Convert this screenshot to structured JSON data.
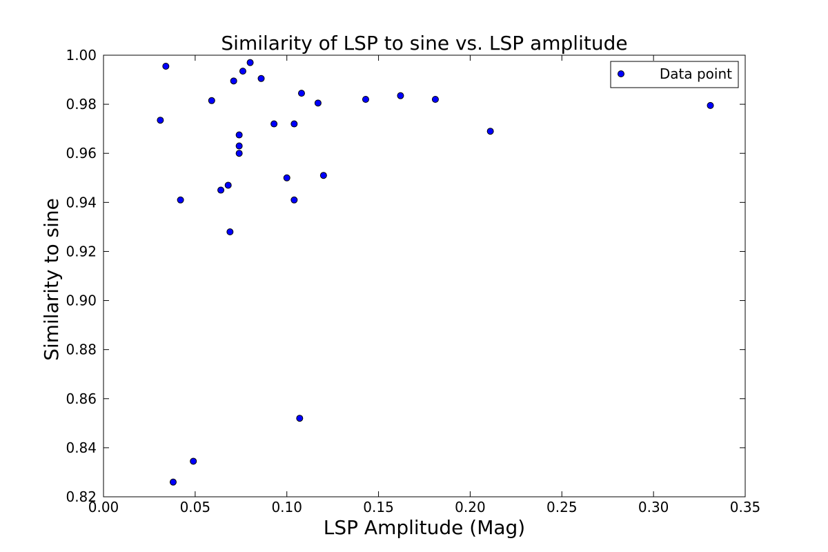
{
  "chart_data": {
    "type": "scatter",
    "title": "Similarity of LSP to sine vs. LSP amplitude",
    "xlabel": "LSP Amplitude (Mag)",
    "ylabel": "Similarity to sine",
    "xlim": [
      0.0,
      0.35
    ],
    "ylim": [
      0.82,
      1.0
    ],
    "x_ticks": [
      "0.00",
      "0.05",
      "0.10",
      "0.15",
      "0.20",
      "0.25",
      "0.30",
      "0.35"
    ],
    "y_ticks": [
      "0.82",
      "0.84",
      "0.86",
      "0.88",
      "0.90",
      "0.92",
      "0.94",
      "0.96",
      "0.98",
      "1.00"
    ],
    "grid": false,
    "legend_placement": "top-right",
    "series": [
      {
        "name": "Data point",
        "color": "#0000ff",
        "x": [
          0.031,
          0.034,
          0.038,
          0.042,
          0.049,
          0.059,
          0.064,
          0.068,
          0.069,
          0.071,
          0.074,
          0.074,
          0.074,
          0.076,
          0.08,
          0.086,
          0.093,
          0.1,
          0.104,
          0.104,
          0.107,
          0.108,
          0.117,
          0.12,
          0.143,
          0.162,
          0.181,
          0.211,
          0.331
        ],
        "y": [
          0.9735,
          0.9955,
          0.826,
          0.941,
          0.8345,
          0.9815,
          0.945,
          0.947,
          0.928,
          0.9895,
          0.9675,
          0.963,
          0.96,
          0.9935,
          0.997,
          0.9905,
          0.972,
          0.95,
          0.972,
          0.941,
          0.852,
          0.9845,
          0.9805,
          0.951,
          0.982,
          0.9835,
          0.982,
          0.969,
          0.9795
        ]
      }
    ]
  }
}
